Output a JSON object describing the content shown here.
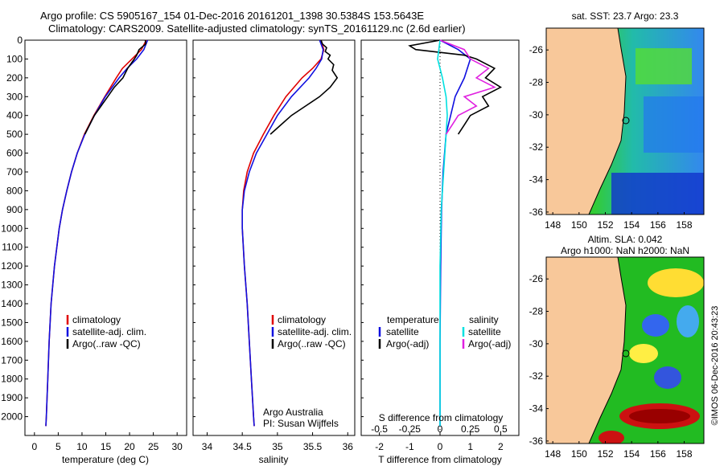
{
  "header": {
    "line1": "Argo profile: CS 5905167_154 01-Dec-2016 20161201_1398 30.5384S 153.5643E",
    "line2": "Climatology: CARS2009. Satellite-adjusted climatology: synTS_20161129.nc (2.6d earlier)"
  },
  "colors": {
    "climatology": "#e00000",
    "satellite": "#1010e0",
    "argo": "#000000",
    "satellite_salinity": "#00e0e0",
    "argo_salinity": "#e020e0",
    "land": "#f8c89a"
  },
  "legend_labels": {
    "climatology": "climatology",
    "satellite": "satellite-adj. clim.",
    "argo": "Argo(..raw -QC)"
  },
  "diff_legend": {
    "temperature_title": "temperature",
    "salinity_title": "salinity",
    "satellite": "satellite",
    "argo": "Argo(-adj)"
  },
  "credits": {
    "line1": "Argo Australia",
    "line2": "PI: Susan Wijffels"
  },
  "maps": {
    "sst_title": "sat. SST: 23.7  Argo: 23.3",
    "sla_title1": "Altim. SLA: 0.042",
    "sla_title2": "Argo h1000: NaN h2000: NaN",
    "timestamp": "©IMOS 06-Dec-2016 20:43:23",
    "lon_ticks": [
      "148",
      "150",
      "152",
      "154",
      "156",
      "158"
    ],
    "lat_ticks": [
      "-26",
      "-28",
      "-30",
      "-32",
      "-34",
      "-36"
    ],
    "float_position": {
      "lon": 153.5643,
      "lat": -30.5384
    }
  },
  "chart_data": [
    {
      "type": "line",
      "name": "temperature",
      "xlabel": "temperature (deg C)",
      "ylabel": "",
      "xlim": [
        -2,
        32
      ],
      "ylim": [
        2100,
        0
      ],
      "x_ticks": [
        "0",
        "5",
        "10",
        "15",
        "20",
        "25",
        "30"
      ],
      "y_ticks": [
        "0",
        "100",
        "200",
        "300",
        "400",
        "500",
        "600",
        "700",
        "800",
        "900",
        "1000",
        "1100",
        "1200",
        "1300",
        "1400",
        "1500",
        "1600",
        "1700",
        "1800",
        "1900",
        "2000"
      ],
      "series": [
        {
          "name": "climatology",
          "depth": [
            0,
            50,
            100,
            150,
            200,
            300,
            400,
            500,
            600,
            700,
            800,
            900,
            1000,
            1200,
            1400,
            1600,
            1800,
            2000,
            2050
          ],
          "values": [
            23.5,
            22.5,
            20.5,
            18.5,
            17.2,
            14.8,
            12.5,
            10.5,
            9.0,
            7.8,
            6.8,
            5.9,
            5.2,
            4.2,
            3.5,
            3.1,
            2.8,
            2.5,
            2.4
          ]
        },
        {
          "name": "satellite-adj. clim.",
          "depth": [
            0,
            50,
            100,
            150,
            200,
            300,
            400,
            500,
            600,
            700,
            800,
            900,
            1000,
            1200,
            1400,
            1600,
            1800,
            2000,
            2050
          ],
          "values": [
            23.8,
            23.0,
            21.5,
            19.5,
            17.8,
            14.9,
            12.6,
            10.6,
            9.0,
            7.8,
            6.8,
            5.9,
            5.2,
            4.2,
            3.5,
            3.1,
            2.8,
            2.5,
            2.4
          ]
        },
        {
          "name": "Argo(..raw -QC)",
          "depth": [
            0,
            20,
            50,
            80,
            100,
            150,
            200,
            250,
            300,
            350,
            400,
            450,
            500
          ],
          "values": [
            23.3,
            23.4,
            22.0,
            21.5,
            21.0,
            19.6,
            18.6,
            16.8,
            15.4,
            14.0,
            12.6,
            11.6,
            10.6
          ]
        }
      ]
    },
    {
      "type": "line",
      "name": "salinity",
      "xlabel": "salinity",
      "ylabel": "",
      "xlim": [
        33.8,
        36.1
      ],
      "ylim": [
        2100,
        0
      ],
      "x_ticks": [
        "34",
        "34.5",
        "35",
        "35.5",
        "36"
      ],
      "series": [
        {
          "name": "climatology",
          "depth": [
            0,
            50,
            100,
            150,
            200,
            300,
            400,
            500,
            600,
            700,
            800,
            900,
            1000,
            1200,
            1400,
            1600,
            1800,
            2000,
            2050
          ],
          "values": [
            35.62,
            35.66,
            35.62,
            35.5,
            35.35,
            35.12,
            34.95,
            34.8,
            34.66,
            34.57,
            34.52,
            34.5,
            34.5,
            34.53,
            34.57,
            34.6,
            34.63,
            34.66,
            34.67
          ]
        },
        {
          "name": "satellite-adj. clim.",
          "depth": [
            0,
            50,
            100,
            150,
            200,
            300,
            400,
            500,
            600,
            700,
            800,
            900,
            1000,
            1200,
            1400,
            1600,
            1800,
            2000,
            2050
          ],
          "values": [
            35.6,
            35.65,
            35.63,
            35.55,
            35.45,
            35.2,
            35.0,
            34.85,
            34.7,
            34.6,
            34.53,
            34.5,
            34.5,
            34.53,
            34.57,
            34.6,
            34.63,
            34.66,
            34.67
          ]
        },
        {
          "name": "Argo(..raw -QC)",
          "depth": [
            0,
            20,
            40,
            60,
            80,
            100,
            130,
            160,
            200,
            250,
            300,
            350,
            400,
            450,
            500
          ],
          "values": [
            35.62,
            35.64,
            35.7,
            35.68,
            35.75,
            35.72,
            35.8,
            35.78,
            35.85,
            35.75,
            35.6,
            35.4,
            35.2,
            35.05,
            34.9
          ]
        }
      ]
    },
    {
      "type": "line",
      "name": "difference",
      "xlabel": "T difference from climatology",
      "xlabel_top": "S difference from climatology",
      "xlim": [
        -2.6,
        2.6
      ],
      "ylim": [
        2100,
        0
      ],
      "x_ticks": [
        "-2",
        "-1",
        "0",
        "1",
        "2"
      ],
      "x_ticks_top": [
        "-0.5",
        "-0.25",
        "0",
        "0.25",
        "0.5"
      ],
      "series": [
        {
          "name": "temperature satellite",
          "depth": [
            0,
            50,
            100,
            200,
            300,
            400,
            500,
            700,
            900,
            1200,
            1600,
            2050
          ],
          "values": [
            0.0,
            0.6,
            1.0,
            0.8,
            0.5,
            0.35,
            0.2,
            0.1,
            0.05,
            0.02,
            0.0,
            0.0
          ]
        },
        {
          "name": "temperature Argo(-adj)",
          "depth": [
            0,
            30,
            50,
            80,
            100,
            150,
            200,
            250,
            300,
            350,
            400,
            450,
            500
          ],
          "values": [
            0.0,
            -1.0,
            -0.8,
            0.8,
            1.2,
            1.8,
            1.5,
            2.0,
            1.4,
            1.6,
            1.0,
            0.8,
            0.6
          ]
        },
        {
          "name": "salinity satellite",
          "depth": [
            0,
            100,
            200,
            300,
            400,
            500,
            700,
            900,
            1200,
            1600,
            2050
          ],
          "values": [
            0.0,
            -0.02,
            0.02,
            0.05,
            0.06,
            0.05,
            0.03,
            0.01,
            0.0,
            0.0,
            0.0
          ]
        },
        {
          "name": "salinity Argo(-adj)",
          "depth": [
            0,
            50,
            100,
            150,
            200,
            250,
            300,
            350,
            400,
            450,
            500
          ],
          "values": [
            0.0,
            0.2,
            0.25,
            0.4,
            0.3,
            0.45,
            0.2,
            0.3,
            0.15,
            0.1,
            0.05
          ]
        }
      ]
    }
  ]
}
